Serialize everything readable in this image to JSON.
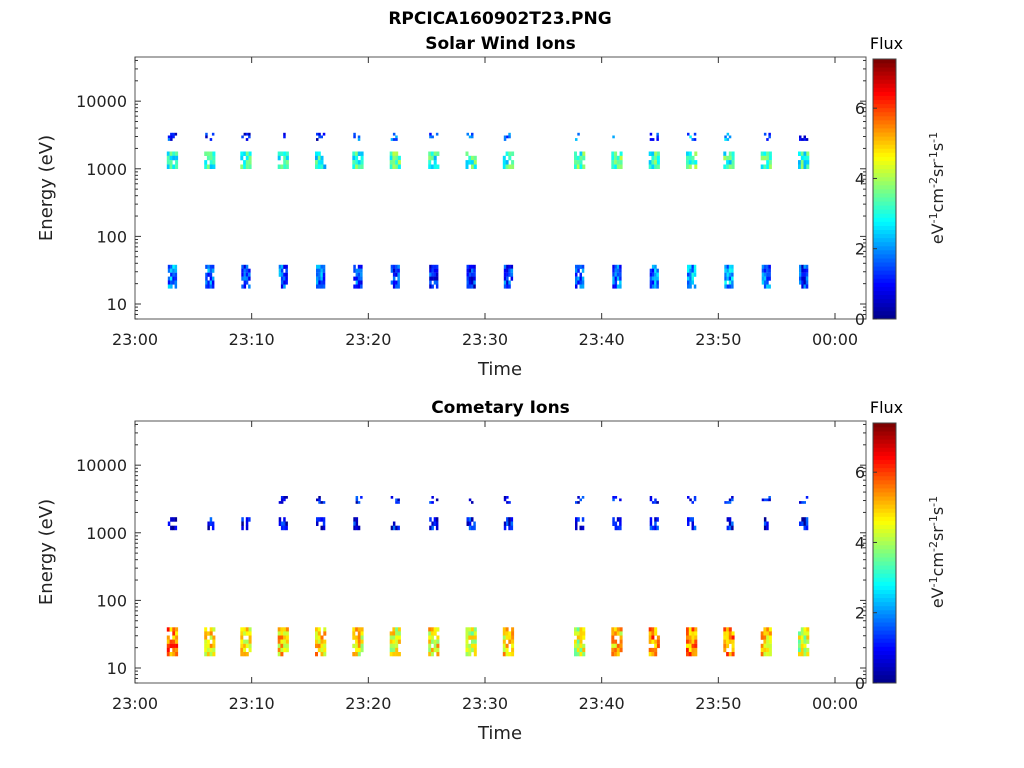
{
  "figure": {
    "title": "RPCICA160902T23.PNG"
  },
  "colors": {
    "colormap": [
      "#00008f",
      "#0000ff",
      "#007fff",
      "#00ffff",
      "#7fff7f",
      "#ffff00",
      "#ff7f00",
      "#ff0000",
      "#7f0000"
    ]
  },
  "chart_data": [
    {
      "type": "heatmap",
      "title": "Solar Wind Ions",
      "xlabel": "Time",
      "ylabel": "Energy (eV)",
      "x_ticks": [
        "23:00",
        "23:10",
        "23:20",
        "23:30",
        "23:40",
        "23:50",
        "00:00"
      ],
      "x_range_minutes": [
        0,
        60
      ],
      "y_scale": "log",
      "y_ticks": [
        "10",
        "100",
        "1000",
        "10000"
      ],
      "ylim": [
        6,
        45000
      ],
      "colorbar": {
        "title": "Flux",
        "unit": "eV-1cm-2sr-1s-1",
        "range": [
          0,
          7.4
        ],
        "ticks": [
          "0",
          "2",
          "4",
          "6"
        ]
      },
      "bursts_minutes": [
        3.2,
        6.4,
        9.5,
        12.7,
        15.9,
        19.1,
        22.3,
        25.6,
        28.8,
        32.0,
        38.1,
        41.3,
        44.5,
        47.7,
        50.9,
        54.1,
        57.3
      ],
      "bands": [
        {
          "name": "",
          "e_lo": 1000,
          "e_hi": 1800,
          "intensity": [
            2.8,
            3.0,
            2.9,
            2.8,
            2.9,
            3.2,
            3.3,
            3.1,
            3.2,
            3.1,
            3.3,
            3.4,
            3.2,
            3.3,
            3.1,
            3.2,
            3.1
          ]
        },
        {
          "name": "",
          "e_lo": 17,
          "e_hi": 38,
          "intensity": [
            1.9,
            1.6,
            1.4,
            1.5,
            1.7,
            1.3,
            1.2,
            1.2,
            1.1,
            1.3,
            1.5,
            1.6,
            1.8,
            2.1,
            2.2,
            1.8,
            1.2
          ]
        },
        {
          "name": "",
          "e_lo": 2600,
          "e_hi": 3400,
          "intensity": [
            1.2,
            1.0,
            0.9,
            0.8,
            1.0,
            1.6,
            1.8,
            1.6,
            1.7,
            1.9,
            1.9,
            1.7,
            1.7,
            1.9,
            1.8,
            1.7,
            1.1
          ]
        }
      ]
    },
    {
      "type": "heatmap",
      "title": "Cometary Ions",
      "xlabel": "Time",
      "ylabel": "Energy (eV)",
      "x_ticks": [
        "23:00",
        "23:10",
        "23:20",
        "23:30",
        "23:40",
        "23:50",
        "00:00"
      ],
      "x_range_minutes": [
        0,
        60
      ],
      "y_scale": "log",
      "y_ticks": [
        "10",
        "100",
        "1000",
        "10000"
      ],
      "ylim": [
        6,
        45000
      ],
      "colorbar": {
        "title": "Flux",
        "unit": "eV-1cm-2sr-1s-1",
        "range": [
          0,
          7.4
        ],
        "ticks": [
          "0",
          "2",
          "4",
          "6"
        ]
      },
      "bursts_minutes": [
        3.2,
        6.4,
        9.5,
        12.7,
        15.9,
        19.1,
        22.3,
        25.6,
        28.8,
        32.0,
        38.1,
        41.3,
        44.5,
        47.7,
        50.9,
        54.1,
        57.3
      ],
      "bands": [
        {
          "name": "",
          "e_lo": 15,
          "e_hi": 40,
          "intensity": [
            5.6,
            4.9,
            4.6,
            4.9,
            5.0,
            4.7,
            4.5,
            4.7,
            4.2,
            4.8,
            4.3,
            4.9,
            5.6,
            5.5,
            5.6,
            4.9,
            4.2
          ]
        },
        {
          "name": "",
          "e_lo": 1100,
          "e_hi": 1700,
          "intensity": [
            0.9,
            0.9,
            0.8,
            0.9,
            0.8,
            1.0,
            0.9,
            0.9,
            0.9,
            0.9,
            1.0,
            1.0,
            1.0,
            1.0,
            0.9,
            0.9,
            0.9
          ]
        },
        {
          "name": "",
          "e_lo": 2700,
          "e_hi": 3500,
          "intensity": [
            0.0,
            0.0,
            0.0,
            0.8,
            0.8,
            0.9,
            0.9,
            0.9,
            0.8,
            0.9,
            0.9,
            0.9,
            0.9,
            0.9,
            0.9,
            0.8,
            0.8
          ]
        }
      ]
    }
  ]
}
